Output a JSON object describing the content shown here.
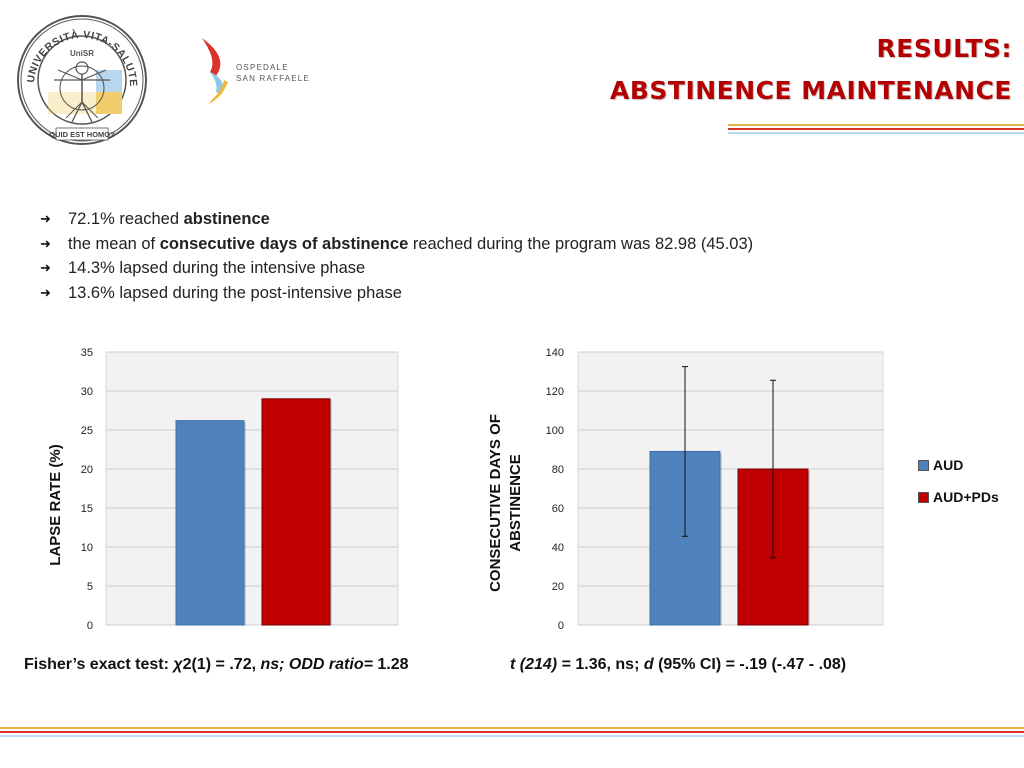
{
  "logos": {
    "seal_ring_text": "UNIVERSITÀ VITA-SALUTE SAN RAFFAELE",
    "seal_center": "UniSR",
    "seal_motto": "QUID EST HOMO?",
    "hospital_line1": "OSPEDALE",
    "hospital_line2": "SAN RAFFAELE"
  },
  "title": {
    "line1": "RESULTS:",
    "line2": "ABSTINENCE MAINTENANCE"
  },
  "bullets": [
    {
      "pre": "72.1% reached ",
      "bold": "abstinence",
      "post": ""
    },
    {
      "pre": "the mean of ",
      "bold": "consecutive days of abstinence",
      "post": " reached during the program was 82.98 (45.03)"
    },
    {
      "pre": "14.3% lapsed during the intensive phase",
      "bold": "",
      "post": ""
    },
    {
      "pre": "13.6% lapsed during the post-intensive phase",
      "bold": "",
      "post": ""
    }
  ],
  "chart_data": [
    {
      "type": "bar",
      "ylabel": "LAPSE RATE (%)",
      "ylim": [
        0,
        35
      ],
      "yticks": [
        0,
        5,
        10,
        15,
        20,
        25,
        30,
        35
      ],
      "series": [
        {
          "name": "AUD",
          "color": "#4f81bd",
          "values": [
            26.2
          ]
        },
        {
          "name": "AUD+PDs",
          "color": "#c00000",
          "values": [
            29
          ]
        }
      ],
      "grid": true
    },
    {
      "type": "bar",
      "ylabel": "CONSECUTIVE DAYS OF ABSTINENCE",
      "ylim": [
        0,
        140
      ],
      "yticks": [
        0,
        20,
        40,
        60,
        80,
        100,
        120,
        140
      ],
      "series": [
        {
          "name": "AUD",
          "color": "#4f81bd",
          "values": [
            89
          ],
          "error": [
            43.5
          ]
        },
        {
          "name": "AUD+PDs",
          "color": "#c00000",
          "values": [
            80
          ],
          "error": [
            45.5
          ]
        }
      ],
      "grid": true,
      "legend_position": "right"
    }
  ],
  "stats": {
    "left": {
      "p1": "Fisher’s exact test: ",
      "p2": "χ",
      "p3": "2(1) = .72, ",
      "p4": "ns; ODD ratio=",
      "p5": " 1.28"
    },
    "right": {
      "p1": "t (214)",
      "p2": " = 1.36, ns; ",
      "p3": "d",
      "p4": " (95% CI) = -.19 (-.47 - .08)"
    }
  },
  "colors": {
    "title": "#b40000",
    "aud": "#4f81bd",
    "audpd": "#c00000"
  }
}
